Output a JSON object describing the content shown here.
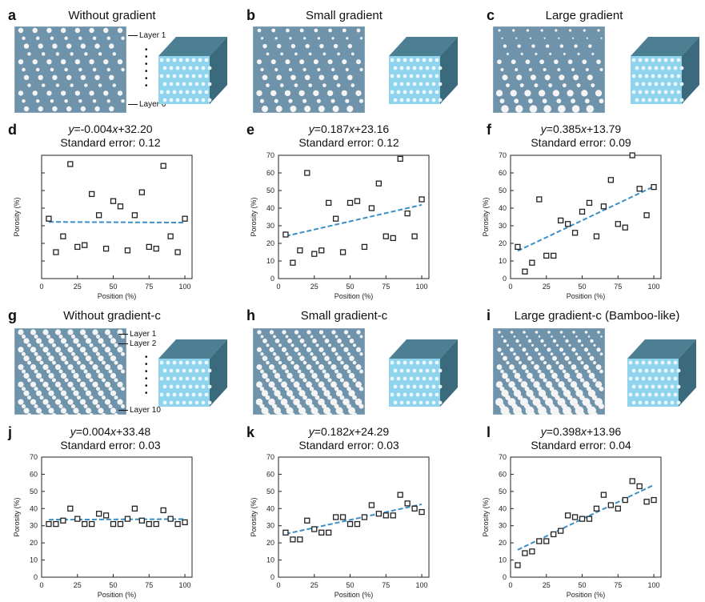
{
  "panels": [
    {
      "letter": "a",
      "title": "Without gradient",
      "layer_top": "Layer 1",
      "layer_mid": "",
      "layer_bottom": "Layer 6",
      "style": "uniform"
    },
    {
      "letter": "b",
      "title": "Small gradient",
      "layer_top": "",
      "layer_mid": "",
      "layer_bottom": "",
      "style": "small"
    },
    {
      "letter": "c",
      "title": "Large gradient",
      "layer_top": "",
      "layer_mid": "",
      "layer_bottom": "",
      "style": "large"
    },
    {
      "letter": "g",
      "title": "Without gradient-c",
      "layer_top": "Layer 1",
      "layer_mid": "Layer 2",
      "layer_bottom": "Layer 10",
      "style": "uniform-c"
    },
    {
      "letter": "h",
      "title": "Small gradient-c",
      "layer_top": "",
      "layer_mid": "",
      "layer_bottom": "",
      "style": "small-c"
    },
    {
      "letter": "i",
      "title": "Large gradient-c (Bamboo-like)",
      "layer_top": "",
      "layer_mid": "",
      "layer_bottom": "",
      "style": "large-c"
    }
  ],
  "colors": {
    "structure_bg": "#6f93aa",
    "hole": "#f4f4f4",
    "cube_top": "#4d7f93",
    "cube_side": "#3b6a7d",
    "cube_front": "#8fd3ec",
    "fit_line": "#3a8fc8",
    "marker": "#222222"
  },
  "chart_data": [
    {
      "letter": "d",
      "type": "scatter",
      "equation_prefix": "y",
      "equation_body": "=-0.004",
      "equation_var": "x",
      "equation_suffix": "+32.20",
      "std_error": "Standard error: 0.12",
      "xlabel": "Position (%)",
      "ylabel": "Porosity (%)",
      "xlim": [
        0,
        105
      ],
      "ylim": [
        0,
        70
      ],
      "xticks": [
        0,
        25,
        50,
        75,
        100
      ],
      "yticks": [
        0,
        10,
        20,
        30,
        40,
        50,
        60,
        70
      ],
      "show_yticklabels": false,
      "fit": {
        "slope": -0.004,
        "intercept": 32.2,
        "x0": 5,
        "x1": 100
      },
      "x": [
        5,
        10,
        15,
        20,
        25,
        30,
        35,
        40,
        45,
        50,
        55,
        60,
        65,
        70,
        75,
        80,
        85,
        90,
        95,
        100
      ],
      "y": [
        34,
        15,
        24,
        65,
        18,
        19,
        48,
        36,
        17,
        44,
        41,
        16,
        36,
        49,
        18,
        17,
        64,
        24,
        15,
        34
      ]
    },
    {
      "letter": "e",
      "type": "scatter",
      "equation_prefix": "y",
      "equation_body": "=0.187",
      "equation_var": "x",
      "equation_suffix": "+23.16",
      "std_error": "Standard error: 0.12",
      "xlabel": "Position (%)",
      "ylabel": "Porosity (%)",
      "xlim": [
        0,
        105
      ],
      "ylim": [
        0,
        70
      ],
      "xticks": [
        0,
        25,
        50,
        75,
        100
      ],
      "yticks": [
        0,
        10,
        20,
        30,
        40,
        50,
        60,
        70
      ],
      "show_yticklabels": true,
      "fit": {
        "slope": 0.187,
        "intercept": 23.16,
        "x0": 5,
        "x1": 100
      },
      "x": [
        5,
        10,
        15,
        20,
        25,
        30,
        35,
        40,
        45,
        50,
        55,
        60,
        65,
        70,
        75,
        80,
        85,
        90,
        95,
        100
      ],
      "y": [
        25,
        9,
        16,
        60,
        14,
        16,
        43,
        34,
        15,
        43,
        44,
        18,
        40,
        54,
        24,
        23,
        68,
        37,
        24,
        45
      ]
    },
    {
      "letter": "f",
      "type": "scatter",
      "equation_prefix": "y",
      "equation_body": "=0.385",
      "equation_var": "x",
      "equation_suffix": "+13.79",
      "std_error": "Standard error: 0.09",
      "xlabel": "Position (%)",
      "ylabel": "Porosity (%)",
      "xlim": [
        0,
        105
      ],
      "ylim": [
        0,
        70
      ],
      "xticks": [
        0,
        25,
        50,
        75,
        100
      ],
      "yticks": [
        0,
        10,
        20,
        30,
        40,
        50,
        60,
        70
      ],
      "show_yticklabels": true,
      "fit": {
        "slope": 0.385,
        "intercept": 13.79,
        "x0": 5,
        "x1": 100
      },
      "x": [
        5,
        10,
        15,
        20,
        25,
        30,
        35,
        40,
        45,
        50,
        55,
        60,
        65,
        70,
        75,
        80,
        85,
        90,
        95,
        100
      ],
      "y": [
        18,
        4,
        9,
        45,
        13,
        13,
        33,
        31,
        26,
        38,
        43,
        24,
        41,
        56,
        31,
        29,
        70,
        51,
        36,
        52
      ]
    },
    {
      "letter": "j",
      "type": "scatter",
      "equation_prefix": "y",
      "equation_body": "=0.004",
      "equation_var": "x",
      "equation_suffix": "+33.48",
      "std_error": "Standard error: 0.03",
      "xlabel": "Position (%)",
      "ylabel": "Porosity (%)",
      "xlim": [
        0,
        105
      ],
      "ylim": [
        0,
        70
      ],
      "xticks": [
        0,
        25,
        50,
        75,
        100
      ],
      "yticks": [
        0,
        10,
        20,
        30,
        40,
        50,
        60,
        70
      ],
      "show_yticklabels": true,
      "fit": {
        "slope": 0.004,
        "intercept": 33.48,
        "x0": 5,
        "x1": 100
      },
      "x": [
        5,
        10,
        15,
        20,
        25,
        30,
        35,
        40,
        45,
        50,
        55,
        60,
        65,
        70,
        75,
        80,
        85,
        90,
        95,
        100
      ],
      "y": [
        31,
        31,
        33,
        40,
        34,
        31,
        31,
        37,
        36,
        31,
        31,
        34,
        40,
        33,
        31,
        31,
        39,
        34,
        31,
        32
      ]
    },
    {
      "letter": "k",
      "type": "scatter",
      "equation_prefix": "y",
      "equation_body": "=0.182",
      "equation_var": "x",
      "equation_suffix": "+24.29",
      "std_error": "Standard error: 0.03",
      "xlabel": "Position (%)",
      "ylabel": "Porosity (%)",
      "xlim": [
        0,
        105
      ],
      "ylim": [
        0,
        70
      ],
      "xticks": [
        0,
        25,
        50,
        75,
        100
      ],
      "yticks": [
        0,
        10,
        20,
        30,
        40,
        50,
        60,
        70
      ],
      "show_yticklabels": true,
      "fit": {
        "slope": 0.182,
        "intercept": 24.29,
        "x0": 5,
        "x1": 100
      },
      "x": [
        5,
        10,
        15,
        20,
        25,
        30,
        35,
        40,
        45,
        50,
        55,
        60,
        65,
        70,
        75,
        80,
        85,
        90,
        95,
        100
      ],
      "y": [
        26,
        22,
        22,
        33,
        28,
        26,
        26,
        35,
        35,
        31,
        31,
        35,
        42,
        37,
        36,
        36,
        48,
        43,
        40,
        38
      ]
    },
    {
      "letter": "l",
      "type": "scatter",
      "equation_prefix": "y",
      "equation_body": "=0.398",
      "equation_var": "x",
      "equation_suffix": "+13.96",
      "std_error": "Standard error: 0.04",
      "xlabel": "Position (%)",
      "ylabel": "Porosity (%)",
      "xlim": [
        0,
        105
      ],
      "ylim": [
        0,
        70
      ],
      "xticks": [
        0,
        25,
        50,
        75,
        100
      ],
      "yticks": [
        0,
        10,
        20,
        30,
        40,
        50,
        60,
        70
      ],
      "show_yticklabels": true,
      "fit": {
        "slope": 0.398,
        "intercept": 13.96,
        "x0": 5,
        "x1": 100
      },
      "x": [
        5,
        10,
        15,
        20,
        25,
        30,
        35,
        40,
        45,
        50,
        55,
        60,
        65,
        70,
        75,
        80,
        85,
        90,
        95,
        100
      ],
      "y": [
        7,
        14,
        15,
        21,
        21,
        25,
        27,
        36,
        35,
        34,
        34,
        40,
        48,
        42,
        40,
        45,
        56,
        53,
        44,
        45
      ]
    }
  ]
}
